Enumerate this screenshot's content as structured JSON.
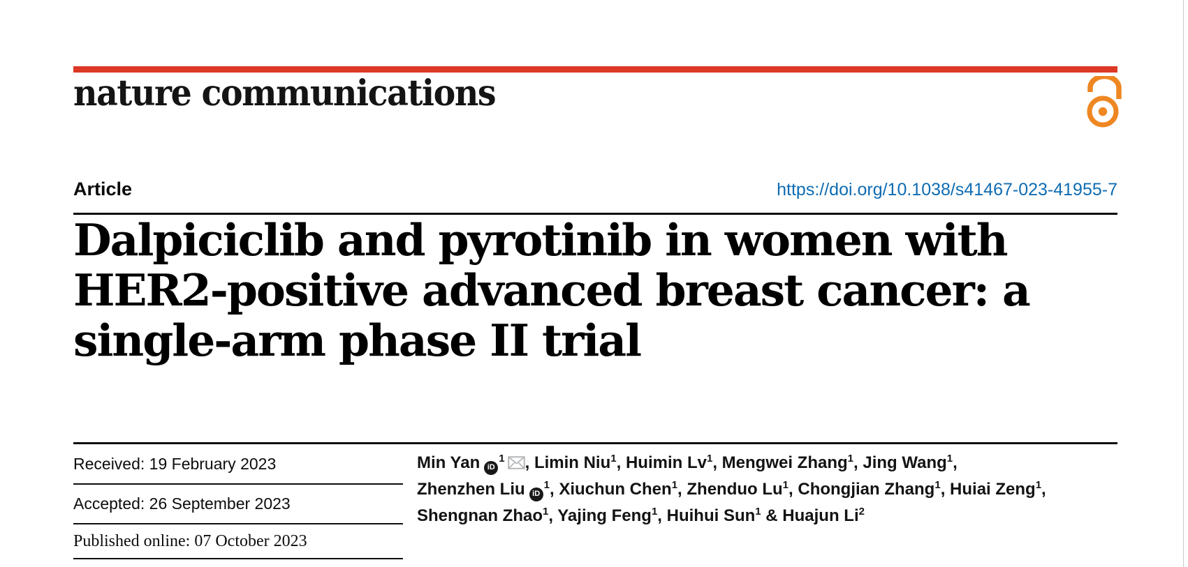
{
  "page": {
    "journal_name": "nature communications",
    "colors": {
      "accent_red": "#dd3826",
      "open_access_orange": "#ee8722",
      "link_blue": "#0f6cb3",
      "text_black": "#000000",
      "icon_gray": "#b5b7b9"
    }
  },
  "article_header": {
    "category": "Article",
    "doi_link": "https://doi.org/10.1038/s41467-023-41955-7"
  },
  "title_lines": [
    "Dalpiciclib and pyrotinib in women with",
    "HER2-positive advanced breast cancer: a",
    "single-arm phase II trial"
  ],
  "dates": [
    {
      "text": "Received: 19 February 2023"
    },
    {
      "text": "Accepted: 26 September 2023"
    },
    {
      "text": "Published online: 07 October 2023"
    }
  ],
  "icons": {
    "orcid_label": "iD",
    "orcid_name": "orcid-icon",
    "email_name": "email-icon",
    "open_access_name": "open-access-lock-icon"
  },
  "authors": {
    "lines": [
      [
        {
          "t": "name",
          "v": "Min Yan"
        },
        {
          "t": "orcid"
        },
        {
          "t": "sup",
          "v": "1"
        },
        {
          "t": "mail"
        },
        {
          "t": "sep",
          "v": ", "
        },
        {
          "t": "name",
          "v": "Limin Niu"
        },
        {
          "t": "sup",
          "v": "1"
        },
        {
          "t": "sep",
          "v": ", "
        },
        {
          "t": "name",
          "v": "Huimin Lv"
        },
        {
          "t": "sup",
          "v": "1"
        },
        {
          "t": "sep",
          "v": ", "
        },
        {
          "t": "name",
          "v": "Mengwei Zhang"
        },
        {
          "t": "sup",
          "v": "1"
        },
        {
          "t": "sep",
          "v": ", "
        },
        {
          "t": "name",
          "v": "Jing Wang"
        },
        {
          "t": "sup",
          "v": "1"
        },
        {
          "t": "sep",
          "v": ","
        }
      ],
      [
        {
          "t": "name",
          "v": "Zhenzhen Liu"
        },
        {
          "t": "orcid"
        },
        {
          "t": "sup",
          "v": "1"
        },
        {
          "t": "sep",
          "v": ", "
        },
        {
          "t": "name",
          "v": "Xiuchun Chen"
        },
        {
          "t": "sup",
          "v": "1"
        },
        {
          "t": "sep",
          "v": ", "
        },
        {
          "t": "name",
          "v": "Zhenduo Lu"
        },
        {
          "t": "sup",
          "v": "1"
        },
        {
          "t": "sep",
          "v": ", "
        },
        {
          "t": "name",
          "v": "Chongjian Zhang"
        },
        {
          "t": "sup",
          "v": "1"
        },
        {
          "t": "sep",
          "v": ", "
        },
        {
          "t": "name",
          "v": "Huiai Zeng"
        },
        {
          "t": "sup",
          "v": "1"
        },
        {
          "t": "sep",
          "v": ","
        }
      ],
      [
        {
          "t": "name",
          "v": "Shengnan Zhao"
        },
        {
          "t": "sup",
          "v": "1"
        },
        {
          "t": "sep",
          "v": ", "
        },
        {
          "t": "name",
          "v": "Yajing Feng"
        },
        {
          "t": "sup",
          "v": "1"
        },
        {
          "t": "sep",
          "v": ", "
        },
        {
          "t": "name",
          "v": "Huihui Sun"
        },
        {
          "t": "sup",
          "v": "1"
        },
        {
          "t": "sep",
          "v": " & "
        },
        {
          "t": "name",
          "v": "Huajun Li"
        },
        {
          "t": "sup",
          "v": "2"
        }
      ]
    ]
  }
}
